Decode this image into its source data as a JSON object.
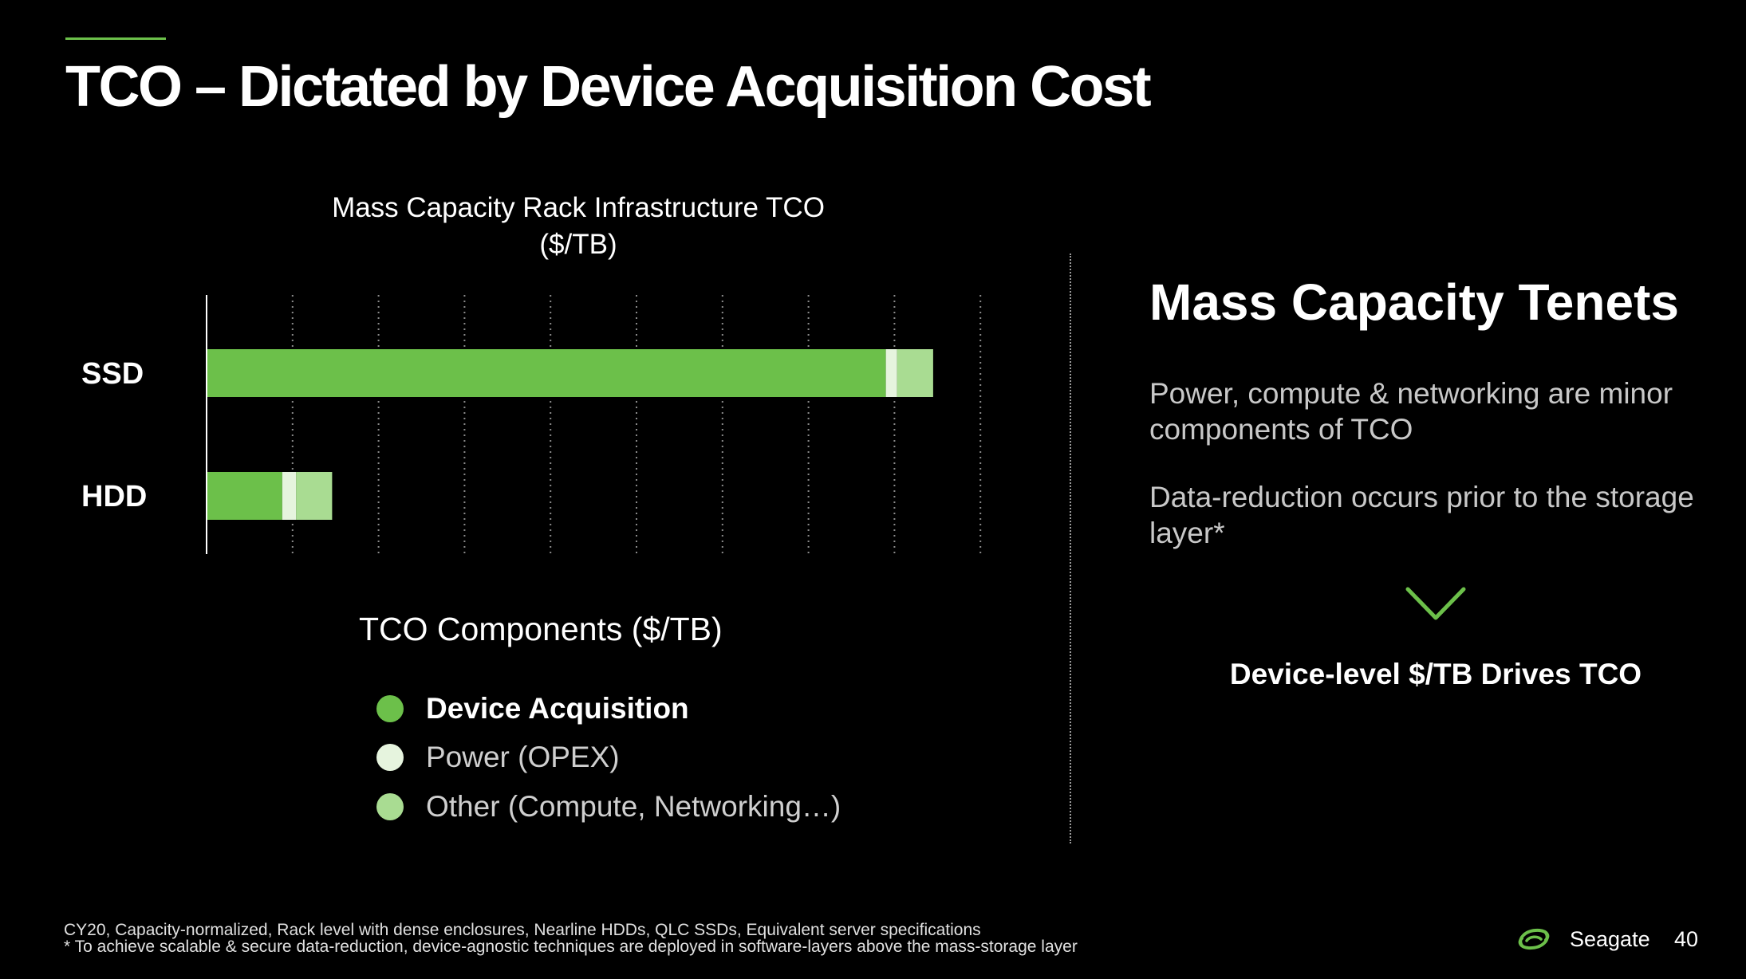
{
  "header": {
    "title": "TCO – Dictated by Device Acquisition Cost"
  },
  "colors": {
    "accent": "#6CC04A",
    "device_acquisition": "#6CC04A",
    "power_opex": "#E6F4DE",
    "other": "#A9DC92"
  },
  "chart_data": {
    "type": "bar",
    "orientation": "horizontal",
    "stacked": true,
    "title": "Mass Capacity Rack Infrastructure TCO",
    "subtitle": "($/TB)",
    "categories": [
      "SSD",
      "HDD"
    ],
    "series": [
      {
        "name": "Device Acquisition",
        "values": [
          7.9,
          0.88
        ]
      },
      {
        "name": "Power (OPEX)",
        "values": [
          0.13,
          0.16
        ]
      },
      {
        "name": "Other  (Compute, Networking…)",
        "values": [
          0.42,
          0.42
        ]
      }
    ],
    "xlim": [
      0,
      9
    ],
    "x_gridlines": [
      1,
      2,
      3,
      4,
      5,
      6,
      7,
      8,
      9
    ],
    "grid": true,
    "tick_labels_shown": false,
    "legend_title": "TCO Components ($/TB)",
    "legend_position": "bottom"
  },
  "tenets": {
    "title": "Mass Capacity Tenets",
    "points": [
      "Power, compute & networking are minor components of TCO",
      "Data-reduction occurs prior to the storage layer*"
    ],
    "arrow_icon": "chevron-down-icon",
    "conclusion": "Device-level $/TB Drives TCO"
  },
  "footer": {
    "notes": [
      "CY20, Capacity-normalized, Rack level with dense enclosures, Nearline HDDs, QLC SSDs, Equivalent server specifications",
      "* To achieve scalable & secure data-reduction, device-agnostic techniques are deployed in software-layers above the mass-storage layer"
    ],
    "brand": "Seagate",
    "page_number": "40",
    "logo_icon": "seagate-logo-icon"
  }
}
